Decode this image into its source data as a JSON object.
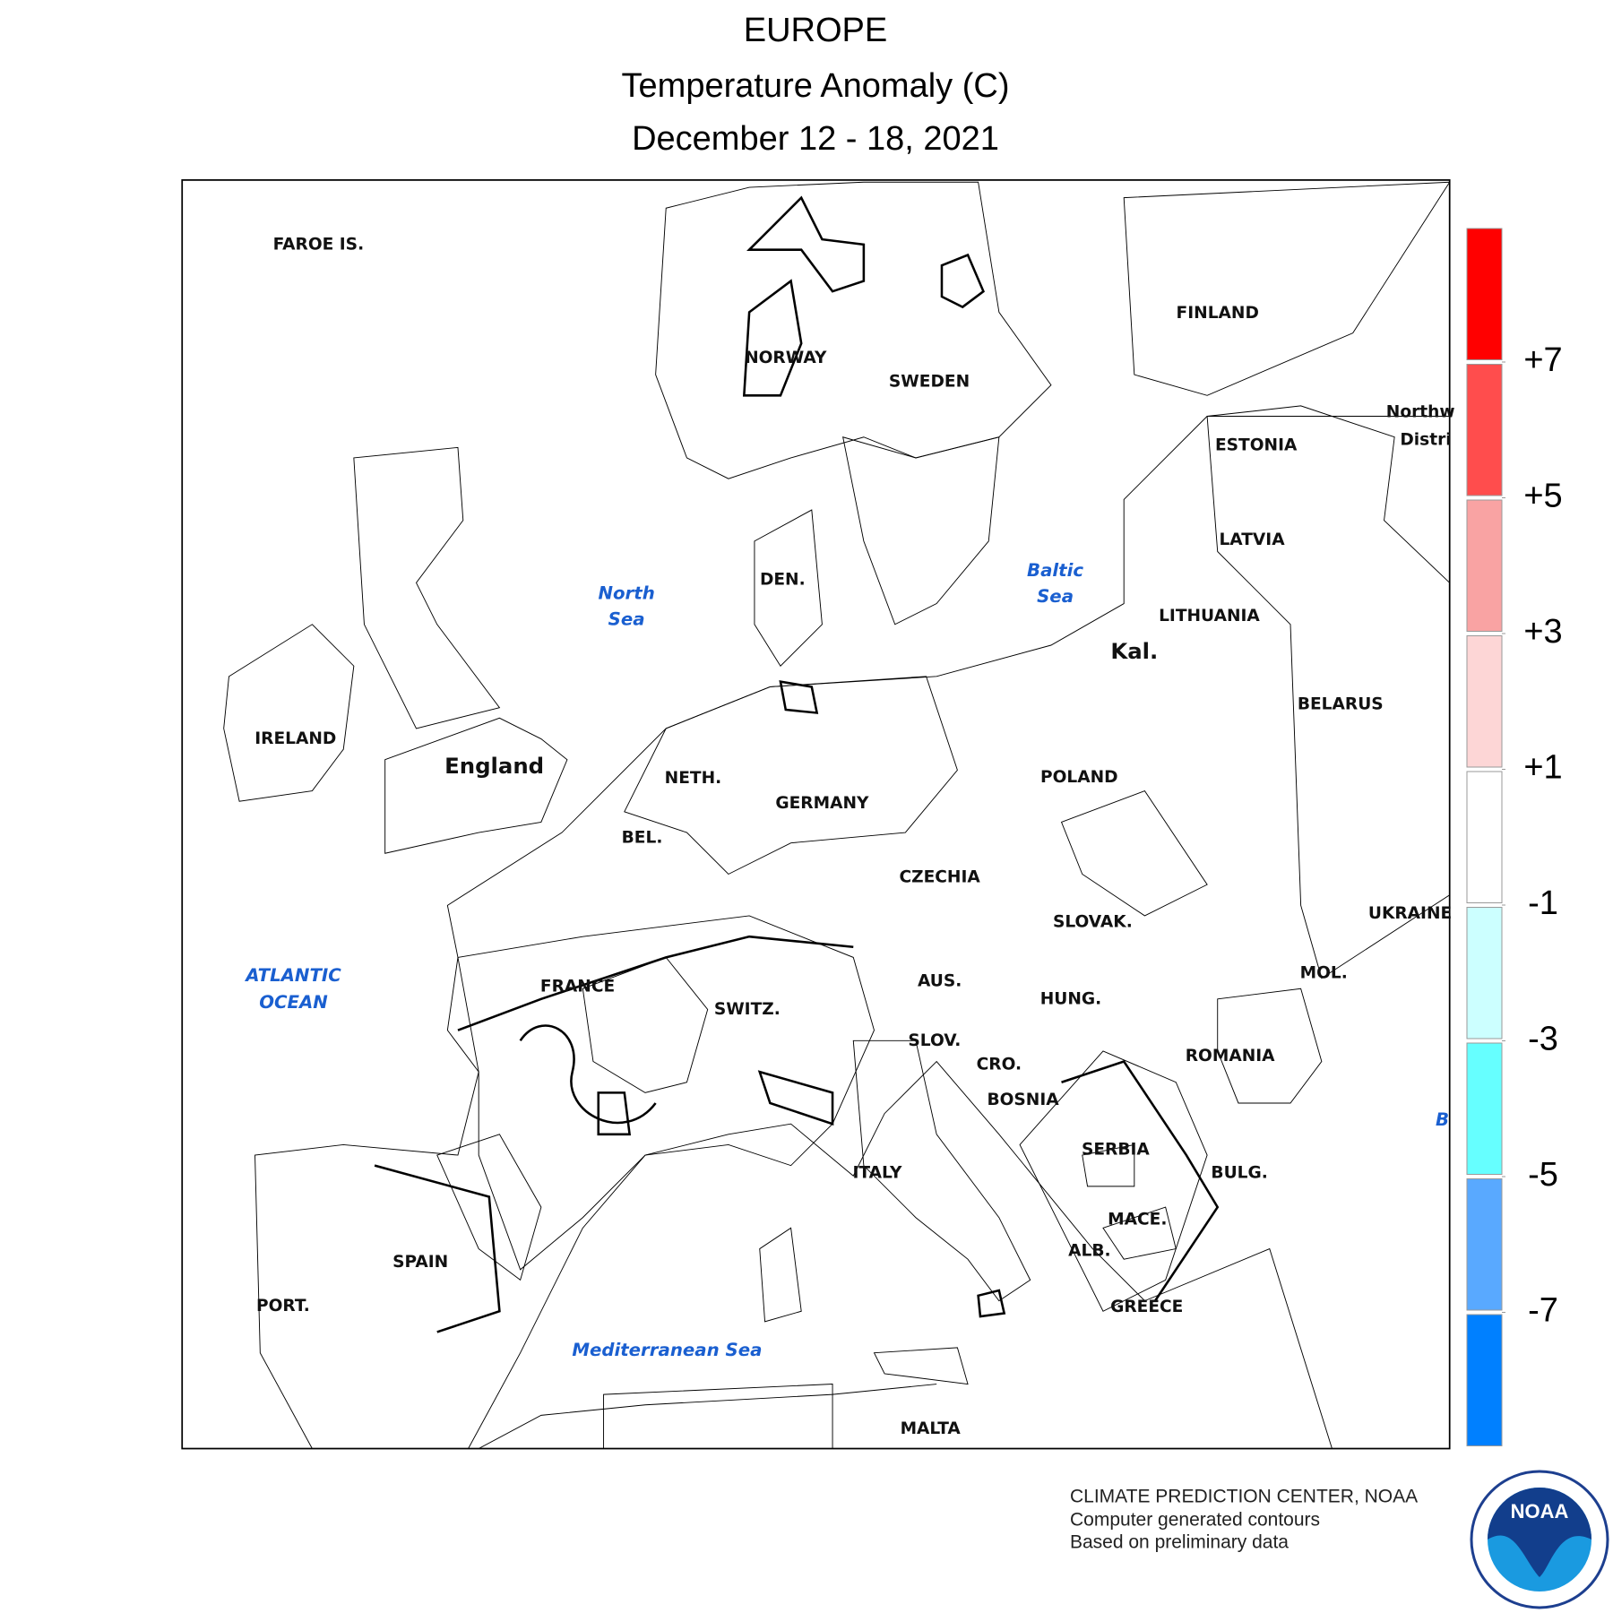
{
  "header": {
    "title": "EUROPE",
    "subtitle": "Temperature Anomaly (C)",
    "date": "December 12 - 18, 2021"
  },
  "map": {
    "labels": [
      "FAROE IS.",
      "NORWAY",
      "SWEDEN",
      "FINLAND",
      "Northw",
      "Distri",
      "ESTONIA",
      "LATVIA",
      "LITHUANIA",
      "Kal.",
      "BELARUS",
      "POLAND",
      "UKRAINE",
      "MOL.",
      "ROMANIA",
      "B",
      "North",
      "Sea",
      "Baltic",
      "Sea",
      "DEN.",
      "IRELAND",
      "England",
      "NETH.",
      "GERMANY",
      "BEL.",
      "CZECHIA",
      "SLOVAK.",
      "AUS.",
      "HUNG.",
      "FRANCE",
      "SWITZ.",
      "SLOV.",
      "CRO.",
      "BOSNIA",
      "SERBIA",
      "BULG.",
      "MACE.",
      "ALB.",
      "GREECE",
      "ITALY",
      "SPAIN",
      "PORT.",
      "ATLANTIC",
      "OCEAN",
      "Mediterranean Sea",
      "MALTA"
    ]
  },
  "legend": {
    "colors": [
      "#ff0000",
      "#ff4d4d",
      "#f9a3a3",
      "#fdd6d6",
      "#ffffff",
      "#ccffff",
      "#66ffff",
      "#59a9ff",
      "#0080ff"
    ],
    "ticks": [
      {
        "value": 7,
        "label": "+7"
      },
      {
        "value": 5,
        "label": "+5"
      },
      {
        "value": 3,
        "label": "+3"
      },
      {
        "value": 1,
        "label": "+1"
      },
      -1,
      -3,
      -5,
      -7
    ]
  },
  "footer": {
    "lines": [
      "CLIMATE PREDICTION CENTER, NOAA",
      "Computer generated contours",
      "Based on preliminary data"
    ],
    "logo": "NOAA"
  }
}
